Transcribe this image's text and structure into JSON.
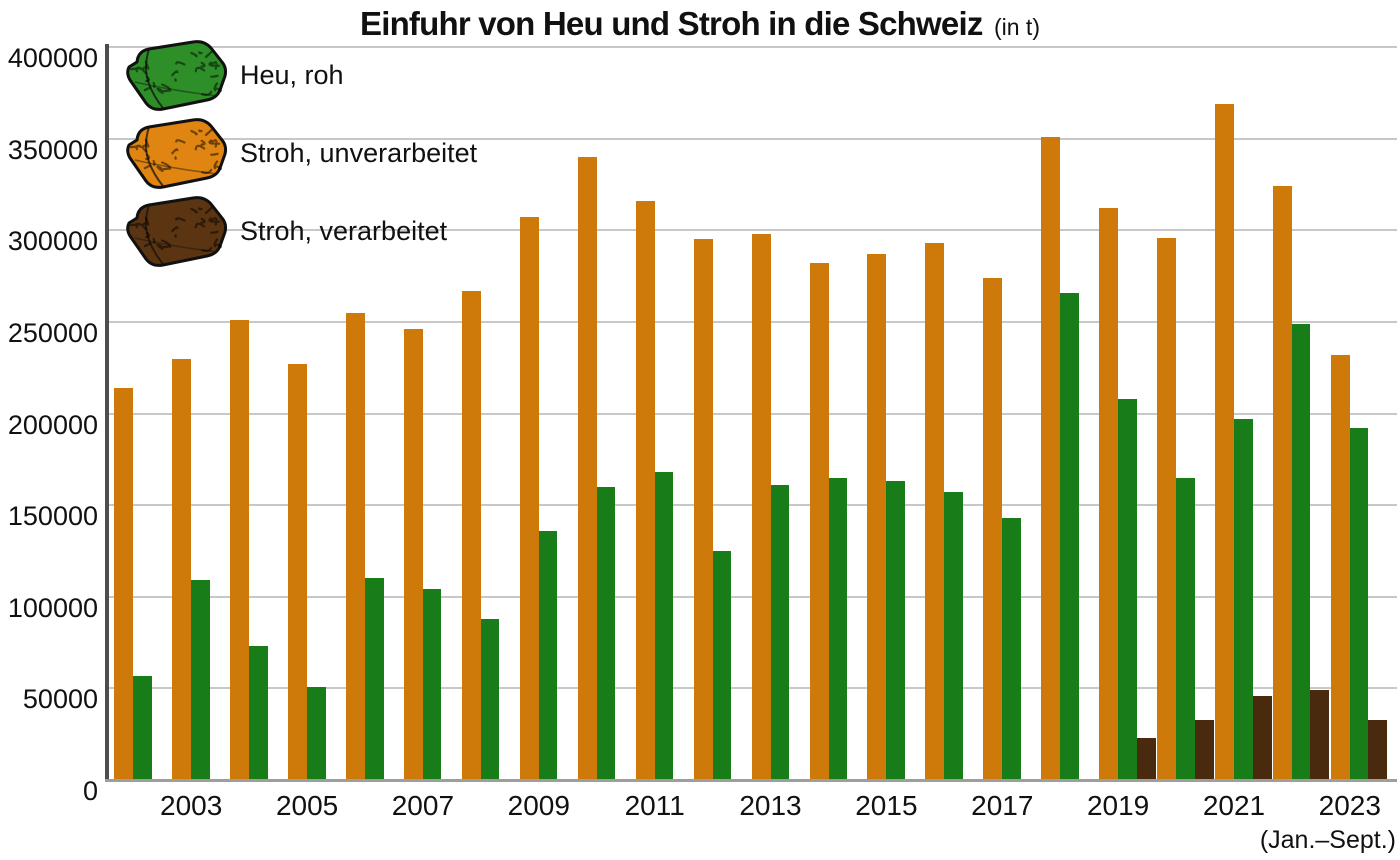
{
  "page": {
    "background": "#ffffff"
  },
  "chart": {
    "title": "Einfuhr von Heu und Stroh in die Schweiz",
    "title_suffix": "(in t)",
    "x_note": "(Jan.–Sept.)"
  },
  "legend": {
    "items": [
      {
        "id": "heu-roh",
        "label": "Heu, roh",
        "fill": "#2e8f28",
        "icon": "hay-bale-icon"
      },
      {
        "id": "stroh-unverarbeitet",
        "label": "Stroh, unverarbeitet",
        "fill": "#e08511",
        "icon": "straw-bale-icon"
      },
      {
        "id": "stroh-verarbeitet",
        "label": "Stroh, verarbeitet",
        "fill": "#5b3512",
        "icon": "processed-straw-bale-icon"
      }
    ]
  },
  "chart_data": {
    "type": "bar",
    "title": "Einfuhr von Heu und Stroh in die Schweiz (in t)",
    "categories": [
      "2002",
      "2003",
      "2004",
      "2005",
      "2006",
      "2007",
      "2008",
      "2009",
      "2010",
      "2011",
      "2012",
      "2013",
      "2014",
      "2015",
      "2016",
      "2017",
      "2018",
      "2019",
      "2020",
      "2021",
      "2022",
      "2023"
    ],
    "series": [
      {
        "name": "Heu, roh",
        "color": "#187d18",
        "values": [
          57000,
          109000,
          73000,
          51000,
          110000,
          104000,
          88000,
          136000,
          160000,
          168000,
          125000,
          161000,
          165000,
          163000,
          157000,
          143000,
          266000,
          208000,
          165000,
          197000,
          249000,
          192000
        ]
      },
      {
        "name": "Stroh, unverarbeitet",
        "color": "#ce7a0a",
        "values": [
          214000,
          230000,
          251000,
          227000,
          255000,
          246000,
          267000,
          307000,
          340000,
          316000,
          295000,
          298000,
          282000,
          287000,
          293000,
          274000,
          351000,
          312000,
          296000,
          369000,
          324000,
          232000
        ]
      },
      {
        "name": "Stroh, verarbeitet",
        "color": "#4a2a0e",
        "values": [
          null,
          null,
          null,
          null,
          null,
          null,
          null,
          null,
          null,
          null,
          null,
          null,
          null,
          null,
          null,
          null,
          null,
          23000,
          33000,
          46000,
          49000,
          33000
        ]
      }
    ],
    "ylim": [
      0,
      400000
    ],
    "y_tick_step": 50000,
    "y_tick_labels": [
      "0",
      "50000",
      "100000",
      "150000",
      "200000",
      "250000",
      "300000",
      "350000",
      "400000"
    ],
    "x_tick_labels": [
      "2003",
      "2005",
      "2007",
      "2009",
      "2011",
      "2013",
      "2015",
      "2017",
      "2019",
      "2021",
      "2023"
    ],
    "x_note": "(Jan.–Sept.)",
    "grid": "horizontal",
    "legend_position": "top-left",
    "unit": "t"
  },
  "colors": {
    "gridline": "#c8c8c8",
    "axis": "#4d4d4d",
    "baseline": "#9e9e9e",
    "text": "#111111",
    "background": "#ffffff"
  }
}
